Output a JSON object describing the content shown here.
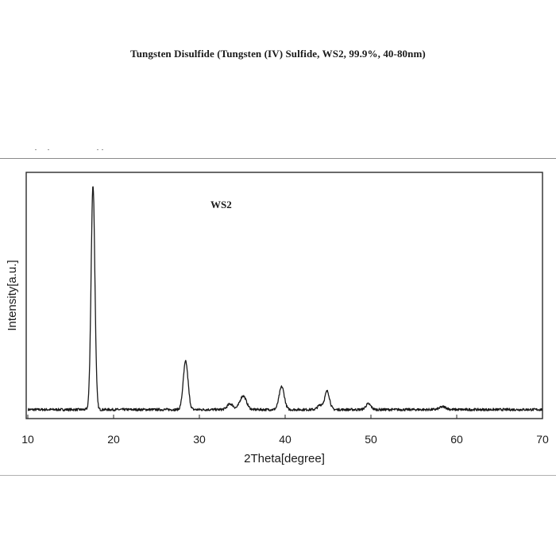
{
  "chart_data": {
    "type": "line",
    "title": "Tungsten Disulfide (Tungsten (IV) Sulfide, WS2, 99.9%, 40-80nm)",
    "xlabel": "2Theta[degree]",
    "ylabel": "Intensity[a.u.]",
    "annotation": "WS2",
    "xlim": [
      10,
      70
    ],
    "ylim": [
      0,
      100
    ],
    "xticks": [
      10,
      20,
      30,
      40,
      50,
      60,
      70
    ],
    "yticks_shown": false,
    "grid": false,
    "legend": "none",
    "series": [
      {
        "color": "#1a1a1a",
        "baseline": 1.5,
        "peaks": [
          {
            "x": 17.6,
            "height": 98,
            "width": 0.22
          },
          {
            "x": 28.4,
            "height": 21,
            "width": 0.28
          },
          {
            "x": 33.6,
            "height": 2.5,
            "width": 0.35
          },
          {
            "x": 35.1,
            "height": 6,
            "width": 0.38
          },
          {
            "x": 39.6,
            "height": 10,
            "width": 0.3
          },
          {
            "x": 44.1,
            "height": 2,
            "width": 0.3
          },
          {
            "x": 44.9,
            "height": 8,
            "width": 0.28
          },
          {
            "x": 49.7,
            "height": 2.5,
            "width": 0.3
          },
          {
            "x": 58.4,
            "height": 1.2,
            "width": 0.4
          }
        ]
      }
    ]
  }
}
